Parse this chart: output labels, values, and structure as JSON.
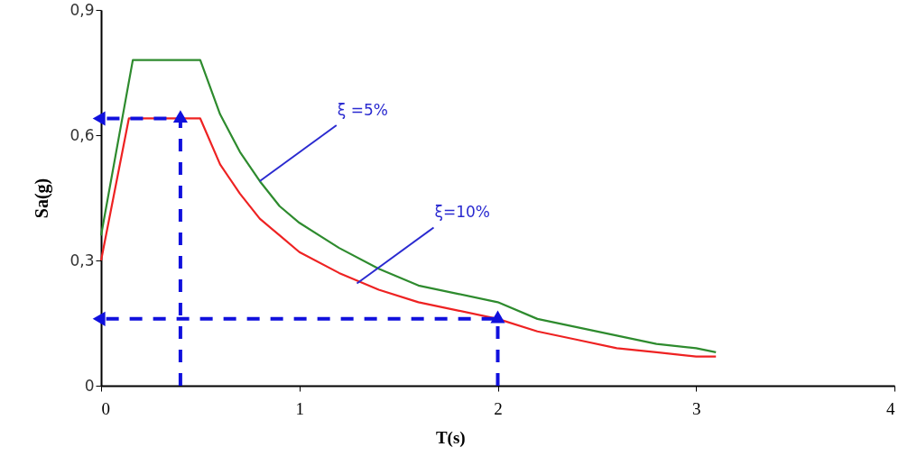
{
  "chart_data": {
    "type": "line",
    "xlabel": "T(s)",
    "ylabel": "Sa(g)",
    "xlim": [
      0,
      4
    ],
    "xticks": [
      0,
      1,
      2,
      3,
      4
    ],
    "ylim": [
      0,
      0.9
    ],
    "yticks": [
      {
        "value": 0,
        "label": "0"
      },
      {
        "value": 0.3,
        "label": "0,3"
      },
      {
        "value": 0.6,
        "label": "0,6"
      },
      {
        "value": 0.9,
        "label": "0,9"
      }
    ],
    "grid": false,
    "line_style": "solid",
    "marker": "none",
    "series": [
      {
        "color": "#2e8b2e",
        "x": [
          0,
          0.16,
          0.5,
          0.6,
          0.7,
          0.8,
          0.9,
          1.0,
          1.2,
          1.4,
          1.6,
          1.8,
          2.0,
          2.2,
          2.4,
          2.6,
          2.8,
          3.0,
          3.1
        ],
        "values": [
          0.36,
          0.78,
          0.78,
          0.65,
          0.56,
          0.49,
          0.43,
          0.39,
          0.33,
          0.28,
          0.24,
          0.22,
          0.2,
          0.16,
          0.14,
          0.12,
          0.1,
          0.09,
          0.08
        ]
      },
      {
        "color": "#ee2222",
        "x": [
          0,
          0.14,
          0.5,
          0.6,
          0.7,
          0.8,
          0.9,
          1.0,
          1.2,
          1.4,
          1.6,
          1.8,
          2.0,
          2.2,
          2.4,
          2.6,
          2.8,
          3.0,
          3.1
        ],
        "values": [
          0.3,
          0.64,
          0.64,
          0.53,
          0.46,
          0.4,
          0.36,
          0.32,
          0.27,
          0.23,
          0.2,
          0.18,
          0.16,
          0.13,
          0.11,
          0.09,
          0.08,
          0.07,
          0.07
        ]
      },
      {
        "color": "#1010dd",
        "line_style": "dashed",
        "marker": "triangle",
        "x": [
          0.4,
          0.4,
          0
        ],
        "values": [
          0,
          0.64,
          0.64
        ]
      },
      {
        "color": "#1010dd",
        "line_style": "dashed",
        "marker": "triangle",
        "x": [
          2,
          2,
          0
        ],
        "values": [
          0,
          0.16,
          0.16
        ]
      }
    ],
    "annotations": [
      {
        "text": "ξ =5%",
        "x": 0.8,
        "y": 0.49
      },
      {
        "text": "ξ=10%",
        "x": 1.29,
        "y": 0.245
      }
    ]
  }
}
